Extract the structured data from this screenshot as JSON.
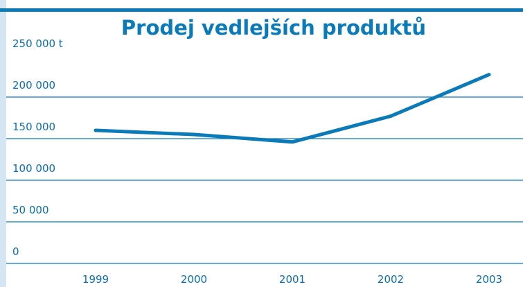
{
  "chart_data": {
    "type": "line",
    "title": "Prodej vedlejších produktů",
    "categories": [
      "1999",
      "2000",
      "2001",
      "2002",
      "2003"
    ],
    "values": [
      160000,
      155000,
      146000,
      177000,
      227000
    ],
    "color": "#0a7ab8",
    "ylim": [
      0,
      250000
    ],
    "yticks": [
      0,
      {
        "value": 50000,
        "label": "50 000"
      },
      {
        "value": 100000,
        "label": "100 000"
      },
      {
        "value": 150000,
        "label": "150 000"
      },
      {
        "value": 200000,
        "label": "200 000"
      },
      {
        "value": 250000,
        "label": "250 000 t"
      }
    ],
    "grid": true
  }
}
